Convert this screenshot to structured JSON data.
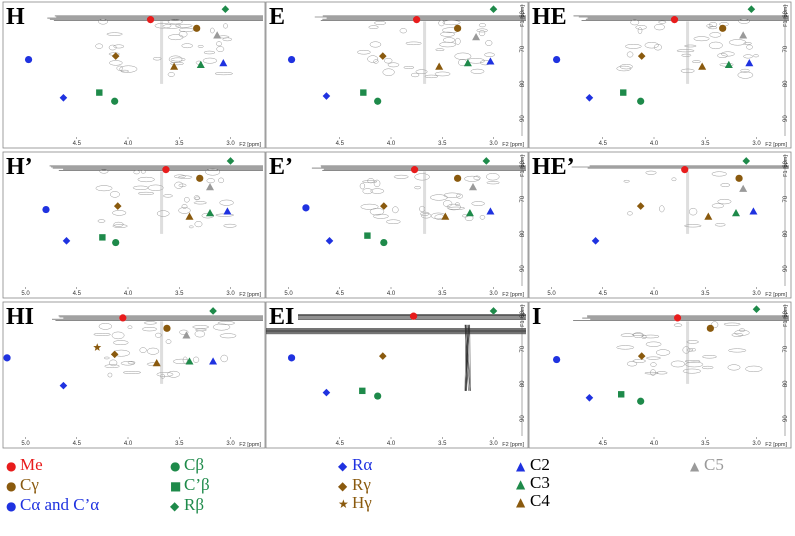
{
  "figure": {
    "panels": [
      {
        "title": "H",
        "x_ticks": [
          "4.5",
          "4.0",
          "3.5",
          "3.0"
        ],
        "x_label": "F2 [ppm]",
        "y_ticks": [],
        "y_label": "",
        "noise": "normal",
        "markers": [
          [
            "Me",
            3.78,
            61.5
          ],
          [
            "Rb",
            3.05,
            58.5
          ],
          [
            "Cg",
            3.33,
            64
          ],
          [
            "C5",
            3.13,
            66
          ],
          [
            "Ca",
            4.97,
            73
          ],
          [
            "Rg",
            4.12,
            72
          ],
          [
            "C4",
            3.55,
            75
          ],
          [
            "C3",
            3.29,
            74.5
          ],
          [
            "C2",
            3.07,
            74
          ],
          [
            "Cb2",
            4.28,
            82.5
          ],
          [
            "Ra",
            4.63,
            84
          ],
          [
            "Cb",
            4.13,
            85
          ]
        ]
      },
      {
        "title": "E",
        "x_ticks": [
          "4.5",
          "4.0",
          "3.5",
          "3.0"
        ],
        "x_label": "F2 [ppm]",
        "y_ticks": [
          "60",
          "70",
          "80",
          "90"
        ],
        "y_label": "F1 [ppm]",
        "noise": "normal",
        "markers": [
          [
            "Me",
            3.75,
            61.5
          ],
          [
            "Rb",
            3.0,
            58.5
          ],
          [
            "Cg",
            3.35,
            64
          ],
          [
            "C5",
            3.17,
            66.5
          ],
          [
            "Ca",
            4.97,
            73
          ],
          [
            "Rg",
            4.08,
            72
          ],
          [
            "C4",
            3.53,
            75
          ],
          [
            "C3",
            3.25,
            74
          ],
          [
            "C2",
            3.03,
            73.5
          ],
          [
            "Cb2",
            4.27,
            82.5
          ],
          [
            "Ra",
            4.63,
            83.5
          ],
          [
            "Cb",
            4.13,
            85
          ]
        ]
      },
      {
        "title": "HE",
        "x_ticks": [
          "4.5",
          "4.0",
          "3.5",
          "3.0"
        ],
        "x_label": "F2 [ppm]",
        "y_ticks": [
          "60",
          "70",
          "80",
          "90"
        ],
        "y_label": "F1 [ppm]",
        "noise": "normal",
        "markers": [
          [
            "Me",
            3.8,
            61.5
          ],
          [
            "Rb",
            3.05,
            58.5
          ],
          [
            "Cg",
            3.33,
            64
          ],
          [
            "C5",
            3.13,
            66
          ],
          [
            "Ca",
            4.95,
            73
          ],
          [
            "Rg",
            4.12,
            72
          ],
          [
            "C4",
            3.53,
            75
          ],
          [
            "C3",
            3.27,
            74.5
          ],
          [
            "C2",
            3.07,
            74
          ],
          [
            "Cb2",
            4.3,
            82.5
          ],
          [
            "Ra",
            4.63,
            84
          ],
          [
            "Cb",
            4.13,
            85
          ]
        ]
      },
      {
        "title": "H’",
        "x_ticks": [
          "5.0",
          "4.5",
          "4.0",
          "3.5",
          "3.0"
        ],
        "x_label": "F2 [ppm]",
        "y_ticks": [],
        "y_label": "",
        "noise": "normal",
        "markers": [
          [
            "Me",
            3.63,
            61.5
          ],
          [
            "Rb",
            3.0,
            59
          ],
          [
            "Cg",
            3.3,
            64
          ],
          [
            "C5",
            3.2,
            66.5
          ],
          [
            "Ca",
            4.8,
            73
          ],
          [
            "Rg",
            4.1,
            72
          ],
          [
            "C4",
            3.4,
            75
          ],
          [
            "C3",
            3.2,
            74
          ],
          [
            "C2",
            3.03,
            73.5
          ],
          [
            "Cb2",
            4.25,
            81
          ],
          [
            "Ra",
            4.6,
            82
          ],
          [
            "Cb",
            4.12,
            82.5
          ]
        ]
      },
      {
        "title": "E’",
        "x_ticks": [
          "5.0",
          "4.5",
          "4.0",
          "3.5",
          "3.0"
        ],
        "x_label": "F2 [ppm]",
        "y_ticks": [
          "60",
          "70",
          "80",
          "90"
        ],
        "y_label": "F1 [ppm]",
        "noise": "normal",
        "markers": [
          [
            "Me",
            3.77,
            61.5
          ],
          [
            "Rb",
            3.07,
            59
          ],
          [
            "Cg",
            3.35,
            64
          ],
          [
            "C5",
            3.2,
            66.5
          ],
          [
            "Ca",
            4.83,
            72.5
          ],
          [
            "Rg",
            4.07,
            72
          ],
          [
            "C4",
            3.47,
            75
          ],
          [
            "C3",
            3.23,
            74
          ],
          [
            "C2",
            3.03,
            73.5
          ],
          [
            "Cb2",
            4.23,
            80.5
          ],
          [
            "Ra",
            4.6,
            82
          ],
          [
            "Cb",
            4.07,
            82.5
          ]
        ]
      },
      {
        "title": "HE’",
        "x_ticks": [
          "5.0",
          "4.5",
          "4.0",
          "3.5",
          "3.0"
        ],
        "x_label": "F2 [ppm]",
        "y_ticks": [
          "60",
          "70",
          "80",
          "90"
        ],
        "y_label": "F1 [ppm]",
        "noise": "low",
        "markers": [
          [
            "Me",
            3.7,
            61.5
          ],
          [
            "Rb",
            3.1,
            59
          ],
          [
            "Cg",
            3.17,
            64
          ],
          [
            "C5",
            3.13,
            67
          ],
          [
            "Rg",
            4.13,
            72
          ],
          [
            "C4",
            3.47,
            75
          ],
          [
            "C3",
            3.2,
            74
          ],
          [
            "C2",
            3.03,
            73.5
          ],
          [
            "Ra",
            4.57,
            82
          ]
        ]
      },
      {
        "title": "HI",
        "x_ticks": [
          "5.0",
          "4.5",
          "4.0",
          "3.5",
          "3.0"
        ],
        "x_label": "F2 [ppm]",
        "y_ticks": [],
        "y_label": "",
        "noise": "normal",
        "markers": [
          [
            "Me",
            4.05,
            61
          ],
          [
            "Rb",
            3.17,
            59
          ],
          [
            "Cg",
            3.62,
            64
          ],
          [
            "C5",
            3.43,
            66
          ],
          [
            "Hg",
            4.3,
            69.5
          ],
          [
            "Ca",
            5.18,
            72.5
          ],
          [
            "Rg",
            4.13,
            71.5
          ],
          [
            "C4",
            3.72,
            74
          ],
          [
            "C3",
            3.4,
            73.5
          ],
          [
            "C2",
            3.17,
            73.5
          ],
          [
            "Ra",
            4.63,
            80.5
          ]
        ]
      },
      {
        "title": "EI",
        "x_ticks": [
          "4.5",
          "4.0",
          "3.5",
          "3.0"
        ],
        "x_label": "F2 [ppm]",
        "y_ticks": [
          "60",
          "70",
          "80",
          "90"
        ],
        "y_label": "F1 [ppm]",
        "noise": "strip",
        "markers": [
          [
            "Me",
            3.78,
            60.5
          ],
          [
            "Rb",
            3.0,
            59
          ],
          [
            "Ca",
            4.97,
            72.5
          ],
          [
            "Rg",
            4.08,
            72
          ],
          [
            "Cb2",
            4.28,
            82
          ],
          [
            "Ra",
            4.63,
            82.5
          ],
          [
            "Cb",
            4.13,
            83.5
          ]
        ]
      },
      {
        "title": "I",
        "x_ticks": [
          "4.5",
          "4.0",
          "3.5",
          "3.0"
        ],
        "x_label": "F2 [ppm]",
        "y_ticks": [
          "60",
          "70",
          "80",
          "90"
        ],
        "y_label": "F1 [ppm]",
        "noise": "normal",
        "markers": [
          [
            "Me",
            3.77,
            61
          ],
          [
            "Rb",
            3.0,
            58.5
          ],
          [
            "Cg",
            3.45,
            64
          ],
          [
            "Ca",
            4.95,
            73
          ],
          [
            "Rg",
            4.12,
            72
          ],
          [
            "Cb2",
            4.32,
            83
          ],
          [
            "Ra",
            4.63,
            84
          ],
          [
            "Cb",
            4.13,
            85
          ]
        ]
      }
    ]
  },
  "legend": [
    {
      "key": "Me",
      "label": "Me",
      "shape": "circle",
      "color": "#e81c1c"
    },
    {
      "key": "Cg",
      "label": "Cγ",
      "shape": "circle",
      "color": "#8a5a0e"
    },
    {
      "key": "Ca",
      "label": "Cα and C’α",
      "shape": "circle",
      "color": "#1f32e0"
    },
    {
      "key": "Cb",
      "label": "Cβ",
      "shape": "circle",
      "color": "#1e8a4a"
    },
    {
      "key": "Cb2",
      "label": "C’β",
      "shape": "square",
      "color": "#1e8a4a"
    },
    {
      "key": "Rb",
      "label": "Rβ",
      "shape": "diamond",
      "color": "#1e8a4a"
    },
    {
      "key": "Ra",
      "label": "Rα",
      "shape": "diamond",
      "color": "#1f32e0"
    },
    {
      "key": "Rg",
      "label": "Rγ",
      "shape": "diamond",
      "color": "#8a5a0e"
    },
    {
      "key": "Hg",
      "label": "Hγ",
      "shape": "star",
      "color": "#8a5a0e"
    },
    {
      "key": "C2",
      "label": "C2",
      "shape": "triangle",
      "color": "#1f32e0"
    },
    {
      "key": "C3",
      "label": "C3",
      "shape": "triangle",
      "color": "#1e8a4a"
    },
    {
      "key": "C4",
      "label": "C4",
      "shape": "triangle",
      "color": "#8a5a0e"
    },
    {
      "key": "C5",
      "label": "C5",
      "shape": "triangle",
      "color": "#9a9a9a"
    }
  ],
  "chart_data": {
    "type": "scatter",
    "title": "",
    "xlabel": "F2 [ppm]",
    "ylabel": "F1 [ppm]",
    "xlim": [
      5.2,
      2.8
    ],
    "ylim": [
      57,
      95
    ],
    "series_description": "Each panel is a 2D NMR (HSQC-type) spectrum; markers identify assigned correlation peaks. Values are (F2 ppm, F1 ppm) pairs per panel in figure.panels[].markers."
  }
}
